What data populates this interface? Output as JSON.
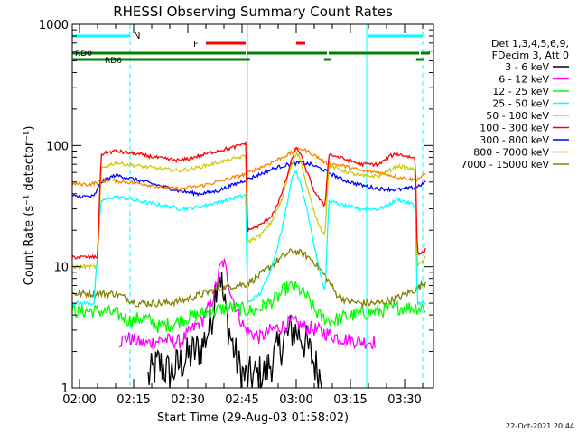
{
  "chart_data": {
    "type": "line",
    "title": "RHESSI Observing Summary Count Rates",
    "xlabel": "Start Time (29-Aug-03 01:58:02)",
    "ylabel": "Count Rate (s⁻¹ detector⁻¹)",
    "yscale": "log",
    "ylim": [
      1,
      1000
    ],
    "xlim_minutes": [
      0,
      100
    ],
    "x_ticks": [
      "02:00",
      "02:15",
      "02:30",
      "02:45",
      "03:00",
      "03:15",
      "03:30"
    ],
    "y_ticks": [
      "1",
      "10",
      "100",
      "1000"
    ],
    "footer_date": "22-Oct-2021 20:44",
    "legend": {
      "header": [
        "Det 1,3,4,5,6,9,",
        "FDecim 3, Att 0"
      ],
      "entries": [
        {
          "label": "3 - 6 keV",
          "color": "#000000"
        },
        {
          "label": "6 - 12 keV",
          "color": "#ff00ff"
        },
        {
          "label": "12 - 25 keV",
          "color": "#00ff00"
        },
        {
          "label": "25 - 50 keV",
          "color": "#00ffff"
        },
        {
          "label": "50 - 100 keV",
          "color": "#cccc00"
        },
        {
          "label": "100 - 300 keV",
          "color": "#ff0000"
        },
        {
          "label": "300 - 800 keV",
          "color": "#0000ff"
        },
        {
          "label": "800 - 7000 keV",
          "color": "#ff8000"
        },
        {
          "label": "7000 - 15000 keV",
          "color": "#808000"
        }
      ]
    },
    "annotations": {
      "night_label": "N",
      "flare_label": "F",
      "rd0_label": "RD0",
      "rd6_label": "RD6"
    },
    "night_intervals": [
      [
        0,
        16
      ],
      [
        82,
        97
      ]
    ],
    "flare_intervals": [
      [
        37,
        48
      ],
      [
        62,
        64.5
      ]
    ],
    "rd0_intervals": [
      [
        0,
        48
      ],
      [
        48.5,
        70.5
      ],
      [
        71,
        96
      ],
      [
        96.5,
        99
      ]
    ],
    "rd_gap_marks": [
      48.2,
      70.7,
      96.2
    ],
    "vertical_markers": {
      "solid": [
        48.5,
        81.5
      ],
      "dashed": [
        16,
        97
      ]
    },
    "series": [
      {
        "name": "100 - 300 keV",
        "color": "#ff0000",
        "points": [
          [
            0,
            12
          ],
          [
            7,
            12
          ],
          [
            8,
            85
          ],
          [
            12,
            90
          ],
          [
            18,
            85
          ],
          [
            25,
            78
          ],
          [
            30,
            75
          ],
          [
            35,
            82
          ],
          [
            40,
            90
          ],
          [
            45,
            97
          ],
          [
            48,
            105
          ],
          [
            48.5,
            20
          ],
          [
            52,
            22
          ],
          [
            55,
            26
          ],
          [
            57,
            33
          ],
          [
            59,
            50
          ],
          [
            61,
            80
          ],
          [
            62,
            97
          ],
          [
            63,
            88
          ],
          [
            65,
            60
          ],
          [
            67,
            42
          ],
          [
            69,
            34
          ],
          [
            70,
            32
          ],
          [
            71,
            85
          ],
          [
            75,
            78
          ],
          [
            80,
            70
          ],
          [
            85,
            70
          ],
          [
            88,
            82
          ],
          [
            90,
            85
          ],
          [
            94,
            80
          ],
          [
            95,
            78
          ],
          [
            95.5,
            13
          ],
          [
            97,
            13
          ],
          [
            98,
            14
          ]
        ]
      },
      {
        "name": "50 - 100 keV",
        "color": "#cccc00",
        "points": [
          [
            0,
            10
          ],
          [
            7,
            10
          ],
          [
            8,
            65
          ],
          [
            12,
            72
          ],
          [
            18,
            68
          ],
          [
            25,
            64
          ],
          [
            30,
            62
          ],
          [
            35,
            66
          ],
          [
            40,
            72
          ],
          [
            45,
            78
          ],
          [
            48,
            82
          ],
          [
            48.5,
            16
          ],
          [
            52,
            18
          ],
          [
            55,
            23
          ],
          [
            58,
            35
          ],
          [
            60,
            60
          ],
          [
            62,
            88
          ],
          [
            63,
            80
          ],
          [
            65,
            45
          ],
          [
            67,
            28
          ],
          [
            69,
            20
          ],
          [
            70,
            19
          ],
          [
            71,
            68
          ],
          [
            75,
            62
          ],
          [
            80,
            56
          ],
          [
            85,
            56
          ],
          [
            90,
            68
          ],
          [
            94,
            64
          ],
          [
            95,
            62
          ],
          [
            95.5,
            10
          ],
          [
            97,
            11
          ],
          [
            98,
            12
          ]
        ]
      },
      {
        "name": "800 - 7000 keV",
        "color": "#ff8000",
        "points": [
          [
            0,
            48
          ],
          [
            5,
            48
          ],
          [
            10,
            52
          ],
          [
            15,
            50
          ],
          [
            20,
            48
          ],
          [
            25,
            45
          ],
          [
            30,
            44
          ],
          [
            35,
            46
          ],
          [
            40,
            50
          ],
          [
            45,
            55
          ],
          [
            48,
            58
          ],
          [
            50,
            62
          ],
          [
            55,
            72
          ],
          [
            60,
            85
          ],
          [
            63,
            95
          ],
          [
            65,
            90
          ],
          [
            68,
            80
          ],
          [
            70,
            72
          ],
          [
            75,
            68
          ],
          [
            80,
            62
          ],
          [
            85,
            60
          ],
          [
            90,
            55
          ],
          [
            95,
            52
          ],
          [
            98,
            58
          ]
        ]
      },
      {
        "name": "300 - 800 keV",
        "color": "#0000ff",
        "points": [
          [
            0,
            38
          ],
          [
            6,
            38
          ],
          [
            8,
            50
          ],
          [
            12,
            57
          ],
          [
            18,
            52
          ],
          [
            25,
            46
          ],
          [
            30,
            42
          ],
          [
            35,
            40
          ],
          [
            40,
            42
          ],
          [
            45,
            48
          ],
          [
            48,
            52
          ],
          [
            52,
            58
          ],
          [
            56,
            65
          ],
          [
            60,
            70
          ],
          [
            63,
            72
          ],
          [
            66,
            70
          ],
          [
            70,
            62
          ],
          [
            75,
            52
          ],
          [
            80,
            47
          ],
          [
            85,
            44
          ],
          [
            90,
            43
          ],
          [
            95,
            45
          ],
          [
            98,
            50
          ]
        ]
      },
      {
        "name": "25 - 50 keV",
        "color": "#00ffff",
        "points": [
          [
            0,
            5
          ],
          [
            6,
            5
          ],
          [
            8,
            35
          ],
          [
            12,
            38
          ],
          [
            18,
            35
          ],
          [
            25,
            32
          ],
          [
            30,
            30
          ],
          [
            35,
            31
          ],
          [
            40,
            34
          ],
          [
            45,
            37
          ],
          [
            48,
            39
          ],
          [
            48.5,
            5
          ],
          [
            52,
            6
          ],
          [
            54,
            8
          ],
          [
            56,
            12
          ],
          [
            58,
            20
          ],
          [
            60,
            40
          ],
          [
            61,
            58
          ],
          [
            62,
            62
          ],
          [
            63,
            50
          ],
          [
            65,
            30
          ],
          [
            67,
            15
          ],
          [
            69,
            8
          ],
          [
            70,
            6
          ],
          [
            71,
            35
          ],
          [
            75,
            32
          ],
          [
            80,
            30
          ],
          [
            85,
            30
          ],
          [
            88,
            33
          ],
          [
            90,
            36
          ],
          [
            94,
            33
          ],
          [
            95,
            31
          ],
          [
            95.5,
            5
          ],
          [
            97,
            5
          ],
          [
            98,
            5
          ]
        ]
      },
      {
        "name": "7000 - 15000 keV",
        "color": "#808000",
        "points": [
          [
            0,
            6
          ],
          [
            8,
            6
          ],
          [
            12,
            6
          ],
          [
            18,
            5
          ],
          [
            25,
            5
          ],
          [
            30,
            5.2
          ],
          [
            35,
            5.8
          ],
          [
            40,
            6.5
          ],
          [
            45,
            7
          ],
          [
            48,
            7.2
          ],
          [
            50,
            7.8
          ],
          [
            53,
            9
          ],
          [
            56,
            10.8
          ],
          [
            59,
            12.5
          ],
          [
            61,
            13.5
          ],
          [
            63,
            13
          ],
          [
            65,
            12.2
          ],
          [
            67,
            11
          ],
          [
            69,
            9.2
          ],
          [
            71,
            7.6
          ],
          [
            73,
            6
          ],
          [
            76,
            5.2
          ],
          [
            80,
            5
          ],
          [
            85,
            5
          ],
          [
            90,
            5.5
          ],
          [
            95,
            6.5
          ],
          [
            98,
            7.5
          ]
        ]
      },
      {
        "name": "12 - 25 keV",
        "color": "#00ff00",
        "points": [
          [
            0,
            4.3
          ],
          [
            8,
            4.3
          ],
          [
            12,
            4.1
          ],
          [
            16,
            3.6
          ],
          [
            20,
            3.8
          ],
          [
            24,
            3.2
          ],
          [
            28,
            3.4
          ],
          [
            32,
            3.8
          ],
          [
            36,
            4.1
          ],
          [
            40,
            4.4
          ],
          [
            44,
            4.6
          ],
          [
            48,
            4.4
          ],
          [
            50,
            4.3
          ],
          [
            54,
            4.9
          ],
          [
            57,
            5.6
          ],
          [
            59,
            6.6
          ],
          [
            61,
            6.9
          ],
          [
            63,
            6.4
          ],
          [
            65,
            5.6
          ],
          [
            67,
            4.4
          ],
          [
            69,
            3.8
          ],
          [
            72,
            3.6
          ],
          [
            76,
            3.9
          ],
          [
            80,
            4.1
          ],
          [
            85,
            4.3
          ],
          [
            90,
            4.6
          ],
          [
            95,
            4.6
          ],
          [
            98,
            4.6
          ]
        ]
      },
      {
        "name": "6 - 12 keV",
        "color": "#ff00ff",
        "points": [
          [
            13,
            2.4
          ],
          [
            15,
            2.6
          ],
          [
            20,
            2.3
          ],
          [
            25,
            2.5
          ],
          [
            30,
            2.4
          ],
          [
            33,
            3
          ],
          [
            36,
            3.6
          ],
          [
            39,
            5.5
          ],
          [
            41,
            10
          ],
          [
            42,
            11
          ],
          [
            44,
            6
          ],
          [
            46,
            4
          ],
          [
            48,
            3
          ],
          [
            52,
            2.6
          ],
          [
            55,
            3
          ],
          [
            58,
            3.2
          ],
          [
            61,
            3.5
          ],
          [
            64,
            3.2
          ],
          [
            68,
            3
          ],
          [
            72,
            2.7
          ],
          [
            76,
            2.5
          ],
          [
            80,
            2.4
          ],
          [
            84,
            2.4
          ]
        ]
      },
      {
        "name": "3 - 6 keV",
        "color": "#000000",
        "points": [
          [
            21,
            1.2
          ],
          [
            24,
            1.6
          ],
          [
            27,
            1.3
          ],
          [
            30,
            1.6
          ],
          [
            33,
            1.9
          ],
          [
            36,
            2.2
          ],
          [
            38,
            3.2
          ],
          [
            39,
            4.5
          ],
          [
            40,
            8
          ],
          [
            41,
            9
          ],
          [
            42,
            5
          ],
          [
            44,
            2.5
          ],
          [
            46,
            1.5
          ],
          [
            48,
            1.2
          ],
          [
            53,
            1.3
          ],
          [
            56,
            1.8
          ],
          [
            59,
            2.6
          ],
          [
            61,
            3
          ],
          [
            63,
            2.8
          ],
          [
            65,
            2.2
          ],
          [
            67,
            1.6
          ],
          [
            69,
            1.2
          ]
        ]
      }
    ]
  }
}
